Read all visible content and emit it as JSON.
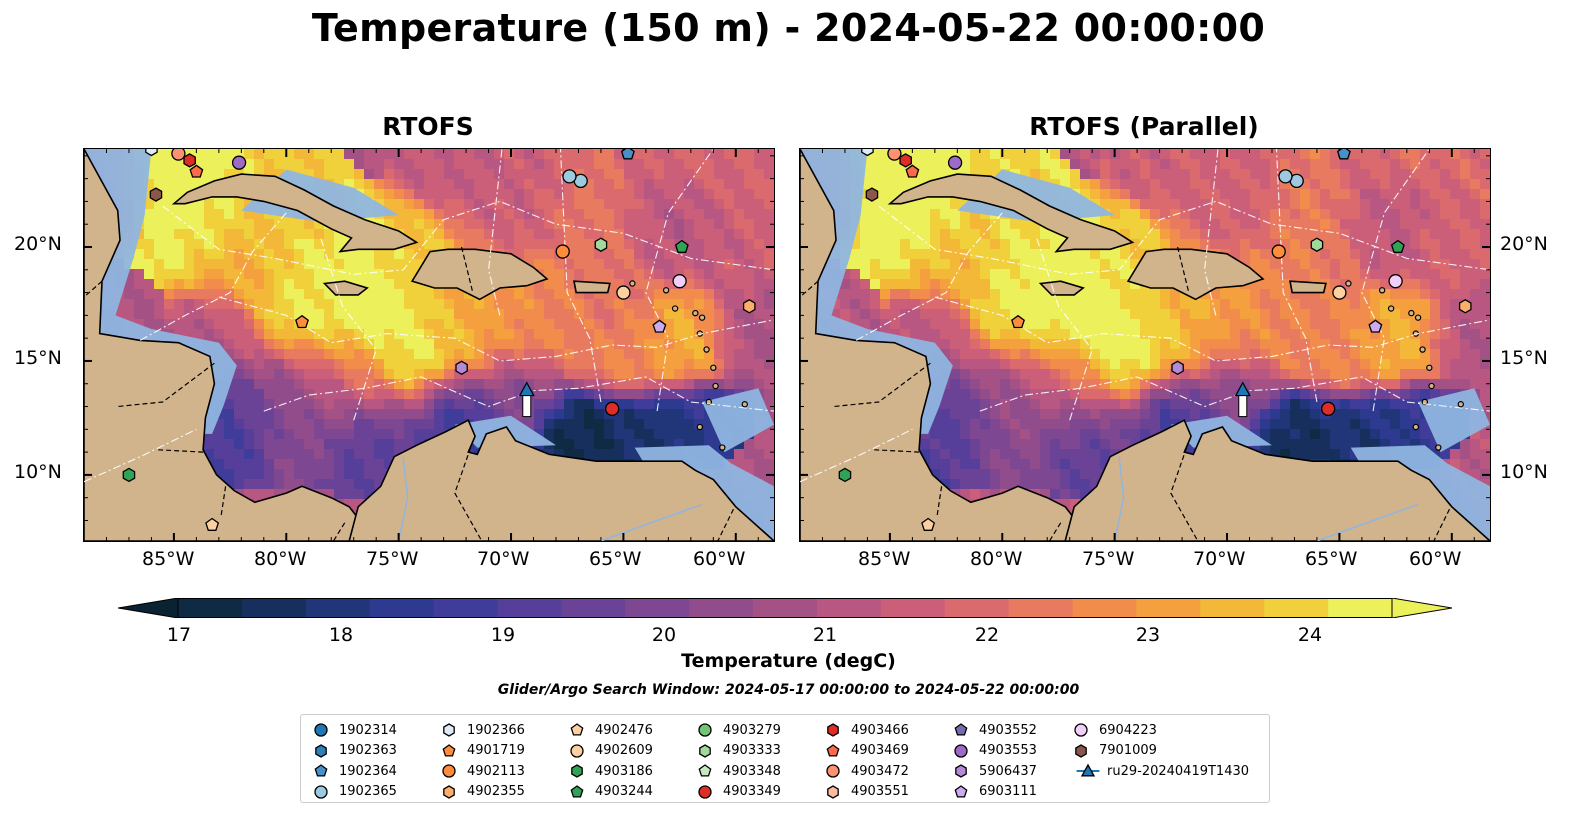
{
  "title": "Temperature (150 m) - 2024-05-22 00:00:00",
  "panels": [
    {
      "title": "RTOFS"
    },
    {
      "title": "RTOFS (Parallel)"
    }
  ],
  "axes": {
    "lon_ticks": [
      "85°W",
      "80°W",
      "75°W",
      "70°W",
      "65°W",
      "60°W"
    ],
    "lat_ticks": [
      "20°N",
      "15°N",
      "10°N"
    ]
  },
  "colorbar": {
    "label": "Temperature (degC)",
    "ticks": [
      "17",
      "18",
      "19",
      "20",
      "21",
      "22",
      "23",
      "24"
    ],
    "colors": [
      "#0f2a43",
      "#172f5c",
      "#213579",
      "#2d3a8f",
      "#3f3d99",
      "#563f9a",
      "#6a4397",
      "#7d4791",
      "#904c8b",
      "#a45186",
      "#b85781",
      "#cb5f79",
      "#db6a6e",
      "#e87a5f",
      "#f18c4d",
      "#f5a03e",
      "#f4b838",
      "#f0d13c",
      "#ecf05a"
    ],
    "under_color": "#0b2233",
    "over_color": "#ecf05a"
  },
  "search_window": "Glider/Argo Search Window: 2024-05-17 00:00:00 to 2024-05-22 00:00:00",
  "legend": [
    {
      "label": "1902314",
      "marker": "circle",
      "color": "#1f77b4"
    },
    {
      "label": "1902363",
      "marker": "hexagon",
      "color": "#2f7fb8"
    },
    {
      "label": "1902364",
      "marker": "pentagon",
      "color": "#4a90c8"
    },
    {
      "label": "1902365",
      "marker": "circle",
      "color": "#9ecae1"
    },
    {
      "label": "1902366",
      "marker": "hexagon",
      "color": "#deebf7"
    },
    {
      "label": "4901719",
      "marker": "pentagon",
      "color": "#fd8d3c"
    },
    {
      "label": "4902113",
      "marker": "circle",
      "color": "#fd8d3c"
    },
    {
      "label": "4902355",
      "marker": "hexagon",
      "color": "#fdae6b"
    },
    {
      "label": "4902476",
      "marker": "pentagon",
      "color": "#fdd0a2"
    },
    {
      "label": "4902609",
      "marker": "circle",
      "color": "#fdd0a2"
    },
    {
      "label": "4903186",
      "marker": "hexagon",
      "color": "#31a354"
    },
    {
      "label": "4903244",
      "marker": "pentagon",
      "color": "#31a354"
    },
    {
      "label": "4903279",
      "marker": "circle",
      "color": "#74c476"
    },
    {
      "label": "4903333",
      "marker": "hexagon",
      "color": "#a1d99b"
    },
    {
      "label": "4903348",
      "marker": "pentagon",
      "color": "#c7e9c0"
    },
    {
      "label": "4903349",
      "marker": "circle",
      "color": "#de2d26"
    },
    {
      "label": "4903466",
      "marker": "hexagon",
      "color": "#de2d26"
    },
    {
      "label": "4903469",
      "marker": "pentagon",
      "color": "#fb6a4a"
    },
    {
      "label": "4903472",
      "marker": "circle",
      "color": "#fc9272"
    },
    {
      "label": "4903551",
      "marker": "hexagon",
      "color": "#fcbba1"
    },
    {
      "label": "4903552",
      "marker": "pentagon",
      "color": "#756bb1"
    },
    {
      "label": "4903553",
      "marker": "circle",
      "color": "#9e6ac8"
    },
    {
      "label": "5906437",
      "marker": "hexagon",
      "color": "#b589d6"
    },
    {
      "label": "6903111",
      "marker": "pentagon",
      "color": "#cbaaf0"
    },
    {
      "label": "6904223",
      "marker": "circle",
      "color": "#f0d0f8"
    },
    {
      "label": "7901009",
      "marker": "hexagon",
      "color": "#8c564b"
    },
    {
      "label": "ru29-20240419T1430",
      "marker": "triangle-line",
      "color": "#1f77b4"
    }
  ],
  "floats": [
    {
      "id": "1902365",
      "lon": -66.9,
      "lat": 22.9
    },
    {
      "id": "1902365",
      "lon": -67.4,
      "lat": 23.1
    },
    {
      "id": "1902364",
      "lon": -64.8,
      "lat": 24.1
    },
    {
      "id": "4902113",
      "lon": -67.7,
      "lat": 19.8
    },
    {
      "id": "4903333",
      "lon": -66.0,
      "lat": 20.1
    },
    {
      "id": "4903244",
      "lon": -62.4,
      "lat": 20.0
    },
    {
      "id": "4902609",
      "lon": -65.0,
      "lat": 18.0
    },
    {
      "id": "6904223",
      "lon": -62.5,
      "lat": 18.5
    },
    {
      "id": "4902355",
      "lon": -59.4,
      "lat": 17.4
    },
    {
      "id": "6903111",
      "lon": -63.4,
      "lat": 16.5
    },
    {
      "id": "4901719",
      "lon": -79.3,
      "lat": 16.7
    },
    {
      "id": "5906437",
      "lon": -72.2,
      "lat": 14.7
    },
    {
      "id": "4903349",
      "lon": -65.5,
      "lat": 12.9
    },
    {
      "id": "7901009",
      "lon": -85.8,
      "lat": 22.3
    },
    {
      "id": "4903466",
      "lon": -84.3,
      "lat": 23.8
    },
    {
      "id": "4903469",
      "lon": -84.0,
      "lat": 23.3
    },
    {
      "id": "4903472",
      "lon": -84.8,
      "lat": 24.1
    },
    {
      "id": "4903553",
      "lon": -82.1,
      "lat": 23.7
    },
    {
      "id": "4903186",
      "lon": -87.0,
      "lat": 10.0
    },
    {
      "id": "4902476",
      "lon": -83.3,
      "lat": 7.8
    },
    {
      "id": "1902366",
      "lon": -86.0,
      "lat": 24.3
    }
  ],
  "glider": {
    "id": "ru29-20240419T1430",
    "lon": -69.3,
    "lat": 13.7
  }
}
